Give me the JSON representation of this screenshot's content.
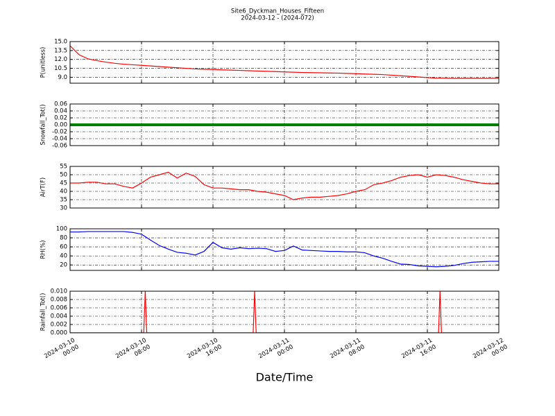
{
  "chart_data": [
    {
      "type": "line",
      "title": "Site6_Dyckman_Houses_Fifteen",
      "subtitle": "2024-03-12 - (2024-072)",
      "y_label": "P(unitless)",
      "color": "#ff0000",
      "x": [
        "2024-03-10 00:00",
        "2024-03-10 01:00",
        "2024-03-10 02:00",
        "2024-03-10 03:00",
        "2024-03-10 04:00",
        "2024-03-10 05:00",
        "2024-03-10 06:00",
        "2024-03-10 07:00",
        "2024-03-10 08:00",
        "2024-03-10 09:00",
        "2024-03-10 10:00",
        "2024-03-10 11:00",
        "2024-03-10 12:00",
        "2024-03-10 13:00",
        "2024-03-10 14:00",
        "2024-03-10 15:00",
        "2024-03-10 16:00",
        "2024-03-10 17:00",
        "2024-03-10 18:00",
        "2024-03-10 19:00",
        "2024-03-10 20:00",
        "2024-03-10 21:00",
        "2024-03-10 22:00",
        "2024-03-10 23:00",
        "2024-03-11 00:00",
        "2024-03-11 01:00",
        "2024-03-11 02:00",
        "2024-03-11 03:00",
        "2024-03-11 04:00",
        "2024-03-11 05:00",
        "2024-03-11 06:00",
        "2024-03-11 07:00",
        "2024-03-11 08:00",
        "2024-03-11 09:00",
        "2024-03-11 10:00",
        "2024-03-11 11:00",
        "2024-03-11 12:00",
        "2024-03-11 13:00",
        "2024-03-11 14:00",
        "2024-03-11 15:00",
        "2024-03-11 16:00",
        "2024-03-11 17:00",
        "2024-03-11 18:00",
        "2024-03-11 19:00",
        "2024-03-11 20:00",
        "2024-03-11 21:00",
        "2024-03-11 22:00",
        "2024-03-11 23:00",
        "2024-03-12 00:00"
      ],
      "values": [
        14.3,
        12.8,
        12.1,
        11.8,
        11.55,
        11.35,
        11.2,
        11.1,
        11.0,
        10.9,
        10.8,
        10.7,
        10.6,
        10.5,
        10.4,
        10.35,
        10.3,
        10.25,
        10.2,
        10.15,
        10.1,
        10.05,
        10.0,
        9.95,
        9.9,
        9.85,
        9.8,
        9.78,
        9.75,
        9.72,
        9.7,
        9.65,
        9.6,
        9.55,
        9.5,
        9.45,
        9.35,
        9.25,
        9.15,
        9.05,
        8.95,
        8.85,
        8.82,
        8.8,
        8.8,
        8.8,
        8.8,
        8.8,
        8.8
      ],
      "xlim": [
        "2024-03-10 00:00",
        "2024-03-12 00:00"
      ],
      "ylim": [
        8,
        15
      ],
      "yticks": [
        {
          "value": 9,
          "label": "9.0"
        },
        10.5,
        {
          "value": 12,
          "label": "12.0"
        },
        13.5,
        {
          "value": 15,
          "label": "15.0"
        }
      ],
      "grid": true
    },
    {
      "type": "line",
      "y_label": "Snowfall_Tot()",
      "color": "#008000",
      "x": [
        "2024-03-10 00:00",
        "2024-03-10 01:00",
        "2024-03-10 02:00",
        "2024-03-10 03:00",
        "2024-03-10 04:00",
        "2024-03-10 05:00",
        "2024-03-10 06:00",
        "2024-03-10 07:00",
        "2024-03-10 08:00",
        "2024-03-10 09:00",
        "2024-03-10 10:00",
        "2024-03-10 11:00",
        "2024-03-10 12:00",
        "2024-03-10 13:00",
        "2024-03-10 14:00",
        "2024-03-10 15:00",
        "2024-03-10 16:00",
        "2024-03-10 17:00",
        "2024-03-10 18:00",
        "2024-03-10 19:00",
        "2024-03-10 20:00",
        "2024-03-10 21:00",
        "2024-03-10 22:00",
        "2024-03-10 23:00",
        "2024-03-11 00:00",
        "2024-03-11 01:00",
        "2024-03-11 02:00",
        "2024-03-11 03:00",
        "2024-03-11 04:00",
        "2024-03-11 05:00",
        "2024-03-11 06:00",
        "2024-03-11 07:00",
        "2024-03-11 08:00",
        "2024-03-11 09:00",
        "2024-03-11 10:00",
        "2024-03-11 11:00",
        "2024-03-11 12:00",
        "2024-03-11 13:00",
        "2024-03-11 14:00",
        "2024-03-11 15:00",
        "2024-03-11 16:00",
        "2024-03-11 17:00",
        "2024-03-11 18:00",
        "2024-03-11 19:00",
        "2024-03-11 20:00",
        "2024-03-11 21:00",
        "2024-03-11 22:00",
        "2024-03-11 23:00",
        "2024-03-12 00:00"
      ],
      "values": [
        0,
        0,
        0,
        0,
        0,
        0,
        0,
        0,
        0,
        0,
        0,
        0,
        0,
        0,
        0,
        0,
        0,
        0,
        0,
        0,
        0,
        0,
        0,
        0,
        0,
        0,
        0,
        0,
        0,
        0,
        0,
        0,
        0,
        0,
        0,
        0,
        0,
        0,
        0,
        0,
        0,
        0,
        0,
        0,
        0,
        0,
        0,
        0,
        0
      ],
      "xlim": [
        "2024-03-10 00:00",
        "2024-03-12 00:00"
      ],
      "ylim": [
        -0.06,
        0.06
      ],
      "yticks": [
        -0.06,
        -0.04,
        -0.02,
        {
          "value": 0,
          "label": "0.00"
        },
        0.02,
        0.04,
        0.06
      ],
      "grid": true
    },
    {
      "type": "line",
      "y_label": "AirT(F)",
      "color": "#ff0000",
      "x": [
        "2024-03-10 00:00",
        "2024-03-10 01:00",
        "2024-03-10 02:00",
        "2024-03-10 03:00",
        "2024-03-10 04:00",
        "2024-03-10 05:00",
        "2024-03-10 06:00",
        "2024-03-10 07:00",
        "2024-03-10 08:00",
        "2024-03-10 09:00",
        "2024-03-10 10:00",
        "2024-03-10 11:00",
        "2024-03-10 12:00",
        "2024-03-10 13:00",
        "2024-03-10 14:00",
        "2024-03-10 15:00",
        "2024-03-10 16:00",
        "2024-03-10 17:00",
        "2024-03-10 18:00",
        "2024-03-10 19:00",
        "2024-03-10 20:00",
        "2024-03-10 21:00",
        "2024-03-10 22:00",
        "2024-03-10 23:00",
        "2024-03-11 00:00",
        "2024-03-11 01:00",
        "2024-03-11 02:00",
        "2024-03-11 03:00",
        "2024-03-11 04:00",
        "2024-03-11 05:00",
        "2024-03-11 06:00",
        "2024-03-11 07:00",
        "2024-03-11 08:00",
        "2024-03-11 09:00",
        "2024-03-11 10:00",
        "2024-03-11 11:00",
        "2024-03-11 12:00",
        "2024-03-11 13:00",
        "2024-03-11 14:00",
        "2024-03-11 15:00",
        "2024-03-11 16:00",
        "2024-03-11 17:00",
        "2024-03-11 18:00",
        "2024-03-11 19:00",
        "2024-03-11 20:00",
        "2024-03-11 21:00",
        "2024-03-11 22:00",
        "2024-03-11 23:00",
        "2024-03-12 00:00"
      ],
      "values": [
        45,
        45,
        45.5,
        45.5,
        44.5,
        44.5,
        43,
        42,
        45,
        48.5,
        50,
        51.5,
        48,
        51,
        49,
        44,
        42,
        42,
        41.5,
        41,
        41,
        40,
        39.5,
        38.5,
        37.5,
        35,
        36,
        36.5,
        36.5,
        37,
        37.5,
        38.5,
        40,
        41,
        44,
        45,
        46.5,
        48.5,
        49.5,
        50,
        48.5,
        50,
        49.5,
        48.5,
        47,
        46,
        45,
        44.5,
        44.5
      ],
      "xlim": [
        "2024-03-10 00:00",
        "2024-03-12 00:00"
      ],
      "ylim": [
        30,
        55
      ],
      "yticks": [
        30,
        35,
        40,
        45,
        50,
        55
      ],
      "grid": true
    },
    {
      "type": "line",
      "y_label": "RH(%)",
      "color": "#0000ff",
      "x": [
        "2024-03-10 00:00",
        "2024-03-10 01:00",
        "2024-03-10 02:00",
        "2024-03-10 03:00",
        "2024-03-10 04:00",
        "2024-03-10 05:00",
        "2024-03-10 06:00",
        "2024-03-10 07:00",
        "2024-03-10 08:00",
        "2024-03-10 09:00",
        "2024-03-10 10:00",
        "2024-03-10 11:00",
        "2024-03-10 12:00",
        "2024-03-10 13:00",
        "2024-03-10 14:00",
        "2024-03-10 15:00",
        "2024-03-10 16:00",
        "2024-03-10 17:00",
        "2024-03-10 18:00",
        "2024-03-10 19:00",
        "2024-03-10 20:00",
        "2024-03-10 21:00",
        "2024-03-10 22:00",
        "2024-03-10 23:00",
        "2024-03-11 00:00",
        "2024-03-11 01:00",
        "2024-03-11 02:00",
        "2024-03-11 03:00",
        "2024-03-11 04:00",
        "2024-03-11 05:00",
        "2024-03-11 06:00",
        "2024-03-11 07:00",
        "2024-03-11 08:00",
        "2024-03-11 09:00",
        "2024-03-11 10:00",
        "2024-03-11 11:00",
        "2024-03-11 12:00",
        "2024-03-11 13:00",
        "2024-03-11 14:00",
        "2024-03-11 15:00",
        "2024-03-11 16:00",
        "2024-03-11 17:00",
        "2024-03-11 18:00",
        "2024-03-11 19:00",
        "2024-03-11 20:00",
        "2024-03-11 21:00",
        "2024-03-11 22:00",
        "2024-03-11 23:00",
        "2024-03-12 00:00"
      ],
      "values": [
        93,
        93,
        94,
        94,
        94,
        94,
        94,
        92,
        88,
        75,
        63,
        55,
        48,
        46,
        42,
        50,
        70,
        58,
        55,
        58,
        56,
        57,
        56,
        50,
        52,
        62,
        53,
        52,
        51,
        50,
        50,
        49,
        49,
        47,
        40,
        35,
        28,
        22,
        21,
        18,
        17,
        16,
        17,
        19,
        23,
        26,
        27,
        28,
        28
      ],
      "xlim": [
        "2024-03-10 00:00",
        "2024-03-12 00:00"
      ],
      "ylim": [
        8,
        100
      ],
      "yticks": [
        20,
        40,
        60,
        80,
        100
      ],
      "grid": true
    },
    {
      "type": "line",
      "y_label": "Rainfall_Tot()",
      "x_label": "Date/Time",
      "color": "#ff0000",
      "x": [
        "2024-03-10 00:00",
        "2024-03-10 08:15",
        "2024-03-10 08:25",
        "2024-03-10 08:35",
        "2024-03-10 20:30",
        "2024-03-10 20:40",
        "2024-03-10 20:50",
        "2024-03-11 17:15",
        "2024-03-11 17:25",
        "2024-03-11 17:35",
        "2024-03-12 00:00"
      ],
      "values": [
        0,
        0,
        0.01,
        0,
        0,
        0.01,
        0,
        0,
        0.01,
        0,
        0
      ],
      "xlim": [
        "2024-03-10 00:00",
        "2024-03-12 00:00"
      ],
      "ylim": [
        0,
        0.01
      ],
      "xticks": [
        "2024-03-10 00:00",
        "2024-03-10 08:00",
        "2024-03-10 16:00",
        "2024-03-11 00:00",
        "2024-03-11 08:00",
        "2024-03-11 16:00",
        "2024-03-12 00:00"
      ],
      "yticks": [
        {
          "value": 0,
          "label": "0.000"
        },
        0.002,
        0.004,
        0.006,
        0.008,
        {
          "value": 0.01,
          "label": "0.010"
        }
      ],
      "grid": true
    }
  ]
}
